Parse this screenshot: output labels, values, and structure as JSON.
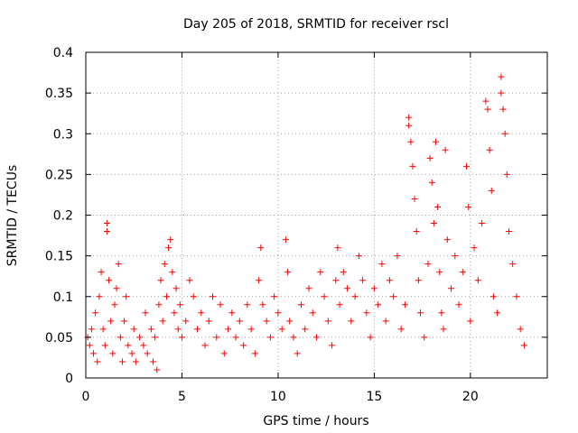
{
  "chart_data": {
    "type": "scatter",
    "title": "Day 205 of 2018, SRMTID for receiver rscl",
    "xlabel": "GPS time / hours",
    "ylabel": "SRMTID / TECUs",
    "xlim": [
      0,
      24
    ],
    "ylim": [
      0,
      0.4
    ],
    "xticks": [
      0,
      5,
      10,
      15,
      20
    ],
    "xtick_labels": [
      "0",
      "5",
      "10",
      "15",
      "20"
    ],
    "yticks": [
      0,
      0.05,
      0.1,
      0.15,
      0.2,
      0.25,
      0.3,
      0.35,
      0.4
    ],
    "ytick_labels": [
      "0",
      "0.05",
      "0.1",
      "0.15",
      "0.2",
      "0.25",
      "0.3",
      "0.35",
      "0.4"
    ],
    "grid": true,
    "marker": "+",
    "series": [
      {
        "name": "SRMTID",
        "color": "#ff0000",
        "points": [
          [
            0.1,
            0.05
          ],
          [
            0.2,
            0.04
          ],
          [
            0.3,
            0.06
          ],
          [
            0.4,
            0.03
          ],
          [
            0.5,
            0.08
          ],
          [
            0.6,
            0.02
          ],
          [
            0.7,
            0.1
          ],
          [
            0.8,
            0.13
          ],
          [
            0.9,
            0.06
          ],
          [
            1.0,
            0.04
          ],
          [
            1.1,
            0.19
          ],
          [
            1.1,
            0.18
          ],
          [
            1.2,
            0.12
          ],
          [
            1.3,
            0.07
          ],
          [
            1.4,
            0.03
          ],
          [
            1.5,
            0.09
          ],
          [
            1.6,
            0.11
          ],
          [
            1.7,
            0.14
          ],
          [
            1.8,
            0.05
          ],
          [
            1.9,
            0.02
          ],
          [
            2.0,
            0.07
          ],
          [
            2.1,
            0.1
          ],
          [
            2.2,
            0.04
          ],
          [
            2.4,
            0.03
          ],
          [
            2.5,
            0.06
          ],
          [
            2.6,
            0.02
          ],
          [
            2.8,
            0.05
          ],
          [
            3.0,
            0.04
          ],
          [
            3.1,
            0.08
          ],
          [
            3.2,
            0.03
          ],
          [
            3.4,
            0.06
          ],
          [
            3.5,
            0.02
          ],
          [
            3.6,
            0.05
          ],
          [
            3.7,
            0.01
          ],
          [
            3.8,
            0.09
          ],
          [
            3.9,
            0.12
          ],
          [
            4.0,
            0.07
          ],
          [
            4.1,
            0.14
          ],
          [
            4.2,
            0.1
          ],
          [
            4.3,
            0.16
          ],
          [
            4.4,
            0.17
          ],
          [
            4.5,
            0.13
          ],
          [
            4.6,
            0.08
          ],
          [
            4.7,
            0.11
          ],
          [
            4.8,
            0.06
          ],
          [
            4.9,
            0.09
          ],
          [
            5.0,
            0.05
          ],
          [
            5.2,
            0.07
          ],
          [
            5.4,
            0.12
          ],
          [
            5.6,
            0.1
          ],
          [
            5.8,
            0.06
          ],
          [
            6.0,
            0.08
          ],
          [
            6.2,
            0.04
          ],
          [
            6.4,
            0.07
          ],
          [
            6.6,
            0.1
          ],
          [
            6.8,
            0.05
          ],
          [
            7.0,
            0.09
          ],
          [
            7.2,
            0.03
          ],
          [
            7.4,
            0.06
          ],
          [
            7.6,
            0.08
          ],
          [
            7.8,
            0.05
          ],
          [
            8.0,
            0.07
          ],
          [
            8.2,
            0.04
          ],
          [
            8.4,
            0.09
          ],
          [
            8.6,
            0.06
          ],
          [
            8.8,
            0.03
          ],
          [
            9.0,
            0.12
          ],
          [
            9.1,
            0.16
          ],
          [
            9.2,
            0.09
          ],
          [
            9.4,
            0.07
          ],
          [
            9.6,
            0.05
          ],
          [
            9.8,
            0.1
          ],
          [
            10.0,
            0.08
          ],
          [
            10.2,
            0.06
          ],
          [
            10.4,
            0.17
          ],
          [
            10.5,
            0.13
          ],
          [
            10.6,
            0.07
          ],
          [
            10.8,
            0.05
          ],
          [
            11.0,
            0.03
          ],
          [
            11.2,
            0.09
          ],
          [
            11.4,
            0.06
          ],
          [
            11.6,
            0.11
          ],
          [
            11.8,
            0.08
          ],
          [
            12.0,
            0.05
          ],
          [
            12.2,
            0.13
          ],
          [
            12.4,
            0.1
          ],
          [
            12.6,
            0.07
          ],
          [
            12.8,
            0.04
          ],
          [
            13.0,
            0.12
          ],
          [
            13.1,
            0.16
          ],
          [
            13.2,
            0.09
          ],
          [
            13.4,
            0.13
          ],
          [
            13.6,
            0.11
          ],
          [
            13.8,
            0.07
          ],
          [
            14.0,
            0.1
          ],
          [
            14.2,
            0.15
          ],
          [
            14.4,
            0.12
          ],
          [
            14.6,
            0.08
          ],
          [
            14.8,
            0.05
          ],
          [
            15.0,
            0.11
          ],
          [
            15.2,
            0.09
          ],
          [
            15.4,
            0.14
          ],
          [
            15.6,
            0.07
          ],
          [
            15.8,
            0.12
          ],
          [
            16.0,
            0.1
          ],
          [
            16.2,
            0.15
          ],
          [
            16.4,
            0.06
          ],
          [
            16.6,
            0.09
          ],
          [
            16.8,
            0.32
          ],
          [
            16.8,
            0.31
          ],
          [
            16.9,
            0.29
          ],
          [
            17.0,
            0.26
          ],
          [
            17.1,
            0.22
          ],
          [
            17.2,
            0.18
          ],
          [
            17.3,
            0.12
          ],
          [
            17.4,
            0.08
          ],
          [
            17.6,
            0.05
          ],
          [
            17.8,
            0.14
          ],
          [
            17.9,
            0.27
          ],
          [
            18.0,
            0.24
          ],
          [
            18.1,
            0.19
          ],
          [
            18.2,
            0.29
          ],
          [
            18.3,
            0.21
          ],
          [
            18.4,
            0.13
          ],
          [
            18.5,
            0.08
          ],
          [
            18.6,
            0.06
          ],
          [
            18.7,
            0.28
          ],
          [
            18.8,
            0.17
          ],
          [
            19.0,
            0.11
          ],
          [
            19.2,
            0.15
          ],
          [
            19.4,
            0.09
          ],
          [
            19.6,
            0.13
          ],
          [
            19.8,
            0.26
          ],
          [
            19.9,
            0.21
          ],
          [
            20.0,
            0.07
          ],
          [
            20.2,
            0.16
          ],
          [
            20.4,
            0.12
          ],
          [
            20.6,
            0.19
          ],
          [
            20.8,
            0.34
          ],
          [
            20.9,
            0.33
          ],
          [
            21.0,
            0.28
          ],
          [
            21.1,
            0.23
          ],
          [
            21.2,
            0.1
          ],
          [
            21.4,
            0.08
          ],
          [
            21.6,
            0.37
          ],
          [
            21.6,
            0.35
          ],
          [
            21.7,
            0.33
          ],
          [
            21.8,
            0.3
          ],
          [
            21.9,
            0.25
          ],
          [
            22.0,
            0.18
          ],
          [
            22.2,
            0.14
          ],
          [
            22.4,
            0.1
          ],
          [
            22.6,
            0.06
          ],
          [
            22.8,
            0.04
          ]
        ]
      }
    ]
  }
}
